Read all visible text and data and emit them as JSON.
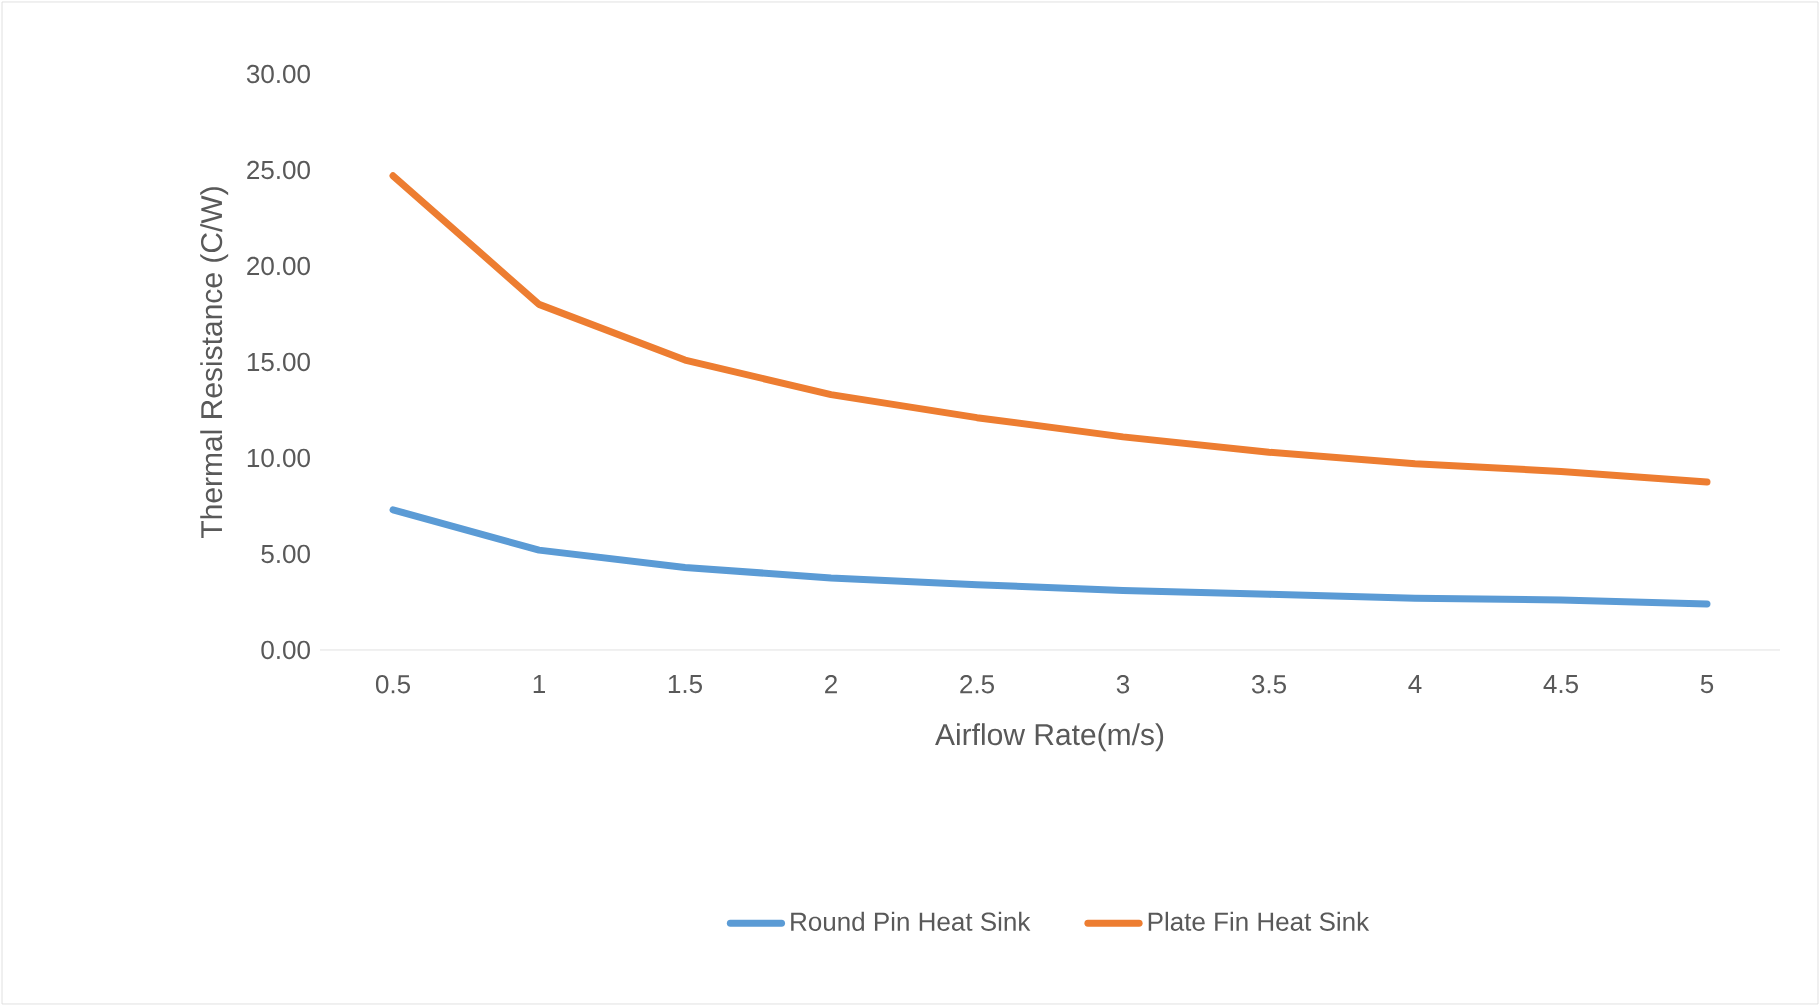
{
  "chart_data": {
    "type": "line",
    "xlabel": "Airflow Rate(m/s)",
    "ylabel": "Thermal Resistance (C/W)",
    "categories": [
      "0.5",
      "1",
      "1.5",
      "2",
      "2.5",
      "3",
      "3.5",
      "4",
      "4.5",
      "5"
    ],
    "series": [
      {
        "name": "Round Pin Heat Sink",
        "color": "#5b9bd5",
        "values": [
          7.3,
          5.2,
          4.3,
          3.75,
          3.4,
          3.1,
          2.9,
          2.7,
          2.6,
          2.4
        ]
      },
      {
        "name": "Plate Fin Heat Sink",
        "color": "#ed7d31",
        "values": [
          24.7,
          18.0,
          15.1,
          13.3,
          12.1,
          11.1,
          10.3,
          9.7,
          9.3,
          8.75
        ]
      }
    ],
    "ylim": [
      0,
      30
    ],
    "yticks": [
      {
        "value": 0,
        "label": "0.00"
      },
      {
        "value": 5,
        "label": "5.00"
      },
      {
        "value": 10,
        "label": "10.00"
      },
      {
        "value": 15,
        "label": "15.00"
      },
      {
        "value": 20,
        "label": "20.00"
      },
      {
        "value": 25,
        "label": "25.00"
      },
      {
        "value": 30,
        "label": "30.00"
      }
    ],
    "legend": "bottom",
    "grid": false,
    "marker": "none",
    "line_style": "solid"
  }
}
